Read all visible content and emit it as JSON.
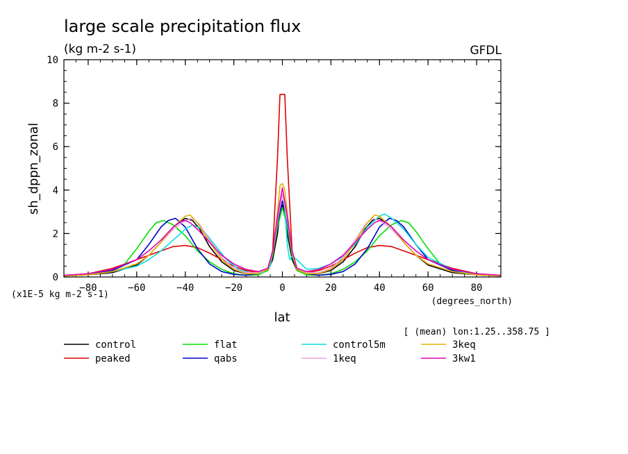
{
  "chart_data": {
    "type": "line",
    "title": "large scale precipitation flux",
    "units_label": "(kg m-2 s-1)",
    "source_label": "GFDL",
    "ylabel": "sh_dppn_zonal",
    "xlabel": "lat",
    "x_unit_label": "(degrees_north)",
    "y_scale_label": "(x1E-5 kg m-2 s-1)",
    "mean_note": "[ (mean) lon:1.25..358.75 ]",
    "xlim": [
      -90,
      90
    ],
    "ylim": [
      0,
      10
    ],
    "x_ticks": [
      -80,
      -60,
      -40,
      -20,
      0,
      20,
      40,
      60,
      80
    ],
    "y_ticks": [
      0,
      2,
      4,
      6,
      8,
      10
    ],
    "legend_placement": "below",
    "grid": false,
    "series": [
      {
        "name": "control",
        "color": "#000000",
        "x": [
          -90,
          -80,
          -70,
          -60,
          -55,
          -50,
          -45,
          -40,
          -37,
          -34,
          -30,
          -25,
          -20,
          -15,
          -10,
          -6,
          -4,
          -2,
          -1,
          0,
          1,
          2,
          4,
          6,
          10,
          15,
          20,
          25,
          30,
          34,
          37,
          40,
          45,
          50,
          55,
          60,
          70,
          80,
          90
        ],
        "y": [
          0.05,
          0.1,
          0.2,
          0.55,
          1.0,
          1.6,
          2.3,
          2.7,
          2.6,
          2.2,
          1.4,
          0.7,
          0.3,
          0.15,
          0.15,
          0.3,
          0.8,
          2.0,
          3.0,
          3.3,
          3.0,
          2.0,
          0.8,
          0.3,
          0.15,
          0.15,
          0.3,
          0.7,
          1.4,
          2.2,
          2.6,
          2.7,
          2.3,
          1.6,
          1.0,
          0.55,
          0.2,
          0.1,
          0.05
        ]
      },
      {
        "name": "peaked",
        "color": "#e00000",
        "x": [
          -90,
          -80,
          -70,
          -60,
          -55,
          -50,
          -45,
          -40,
          -35,
          -30,
          -25,
          -20,
          -15,
          -10,
          -6,
          -4,
          -2,
          -1,
          0,
          1,
          2,
          4,
          6,
          10,
          15,
          20,
          25,
          30,
          35,
          40,
          45,
          50,
          55,
          60,
          70,
          80,
          90
        ],
        "y": [
          0.05,
          0.15,
          0.4,
          0.8,
          1.0,
          1.2,
          1.4,
          1.45,
          1.35,
          1.1,
          0.8,
          0.5,
          0.3,
          0.2,
          0.3,
          1.2,
          5.5,
          8.4,
          8.4,
          8.4,
          5.5,
          1.2,
          0.3,
          0.2,
          0.3,
          0.5,
          0.8,
          1.1,
          1.35,
          1.45,
          1.4,
          1.2,
          1.0,
          0.8,
          0.4,
          0.15,
          0.05
        ]
      },
      {
        "name": "flat",
        "color": "#00dd00",
        "x": [
          -90,
          -80,
          -70,
          -65,
          -60,
          -55,
          -52,
          -49,
          -45,
          -40,
          -35,
          -30,
          -25,
          -20,
          -15,
          -10,
          -6,
          -4,
          -2,
          0,
          2,
          4,
          6,
          10,
          15,
          20,
          25,
          30,
          35,
          40,
          45,
          49,
          52,
          55,
          60,
          65,
          70,
          80,
          90
        ],
        "y": [
          0.05,
          0.1,
          0.3,
          0.6,
          1.3,
          2.1,
          2.5,
          2.6,
          2.4,
          1.9,
          1.2,
          0.7,
          0.35,
          0.15,
          0.08,
          0.1,
          0.3,
          1.0,
          2.3,
          3.2,
          2.3,
          1.0,
          0.3,
          0.1,
          0.08,
          0.15,
          0.35,
          0.7,
          1.2,
          1.9,
          2.4,
          2.6,
          2.5,
          2.1,
          1.3,
          0.6,
          0.3,
          0.1,
          0.05
        ]
      },
      {
        "name": "qabs",
        "color": "#0000cc",
        "x": [
          -90,
          -80,
          -70,
          -60,
          -55,
          -50,
          -47,
          -44,
          -40,
          -35,
          -30,
          -25,
          -20,
          -15,
          -10,
          -6,
          -4,
          -2,
          0,
          2,
          4,
          6,
          10,
          15,
          20,
          25,
          30,
          35,
          40,
          44,
          47,
          50,
          55,
          60,
          70,
          80,
          90
        ],
        "y": [
          0.05,
          0.1,
          0.3,
          0.8,
          1.5,
          2.3,
          2.6,
          2.7,
          2.3,
          1.3,
          0.6,
          0.25,
          0.12,
          0.08,
          0.15,
          0.4,
          1.1,
          2.5,
          3.5,
          2.5,
          1.1,
          0.4,
          0.15,
          0.08,
          0.12,
          0.25,
          0.6,
          1.3,
          2.3,
          2.7,
          2.6,
          2.3,
          1.5,
          0.8,
          0.3,
          0.1,
          0.05
        ]
      },
      {
        "name": "control5m",
        "color": "#00e0e0",
        "x": [
          -90,
          -80,
          -70,
          -60,
          -55,
          -50,
          -45,
          -40,
          -37,
          -33,
          -28,
          -23,
          -18,
          -12,
          -8,
          -5,
          -3,
          -1,
          0,
          1,
          2,
          3,
          4,
          6,
          10,
          15,
          20,
          25,
          30,
          35,
          40,
          42,
          45,
          50,
          55,
          60,
          70,
          80,
          90
        ],
        "y": [
          0.05,
          0.1,
          0.25,
          0.5,
          0.8,
          1.2,
          1.7,
          2.2,
          2.4,
          2.2,
          1.5,
          0.8,
          0.35,
          0.15,
          0.2,
          0.5,
          1.8,
          3.5,
          3.8,
          3.2,
          1.5,
          0.8,
          0.95,
          0.8,
          0.35,
          0.4,
          0.6,
          0.95,
          1.5,
          2.3,
          2.8,
          2.9,
          2.7,
          2.2,
          1.5,
          0.9,
          0.35,
          0.1,
          0.05
        ]
      },
      {
        "name": "1keq",
        "color": "#ee9ee0",
        "x": [
          -90,
          -80,
          -70,
          -60,
          -55,
          -50,
          -45,
          -40,
          -37,
          -34,
          -30,
          -25,
          -20,
          -15,
          -10,
          -6,
          -4,
          -2,
          0,
          2,
          4,
          6,
          10,
          15,
          20,
          25,
          30,
          34,
          37,
          40,
          45,
          50,
          55,
          60,
          70,
          80,
          90
        ],
        "y": [
          0.05,
          0.1,
          0.25,
          0.6,
          1.0,
          1.6,
          2.2,
          2.6,
          2.7,
          2.4,
          1.7,
          0.9,
          0.4,
          0.2,
          0.2,
          0.4,
          1.1,
          2.6,
          3.8,
          2.6,
          1.1,
          0.4,
          0.2,
          0.2,
          0.4,
          0.9,
          1.7,
          2.4,
          2.7,
          2.6,
          2.2,
          1.6,
          1.0,
          0.6,
          0.25,
          0.1,
          0.05
        ]
      },
      {
        "name": "3keq",
        "color": "#e0b000",
        "x": [
          -90,
          -80,
          -70,
          -60,
          -55,
          -50,
          -45,
          -40,
          -38,
          -35,
          -30,
          -25,
          -20,
          -15,
          -10,
          -6,
          -4,
          -2,
          -1,
          0,
          1,
          2,
          4,
          6,
          10,
          15,
          20,
          25,
          30,
          35,
          38,
          40,
          45,
          50,
          55,
          60,
          70,
          80,
          90
        ],
        "y": [
          0.05,
          0.1,
          0.25,
          0.6,
          1.0,
          1.6,
          2.3,
          2.8,
          2.85,
          2.5,
          1.6,
          0.8,
          0.35,
          0.15,
          0.15,
          0.35,
          1.1,
          3.0,
          4.2,
          4.3,
          4.0,
          3.0,
          1.1,
          0.35,
          0.15,
          0.15,
          0.35,
          0.8,
          1.6,
          2.5,
          2.85,
          2.8,
          2.3,
          1.6,
          1.0,
          0.6,
          0.25,
          0.1,
          0.05
        ]
      },
      {
        "name": "3kw1",
        "color": "#e000b0",
        "x": [
          -90,
          -80,
          -70,
          -60,
          -55,
          -50,
          -45,
          -42,
          -40,
          -38,
          -35,
          -30,
          -25,
          -20,
          -15,
          -10,
          -6,
          -4,
          -2,
          0,
          2,
          4,
          6,
          10,
          15,
          20,
          25,
          30,
          35,
          38,
          40,
          42,
          45,
          50,
          55,
          60,
          70,
          80,
          90
        ],
        "y": [
          0.08,
          0.15,
          0.35,
          0.8,
          1.2,
          1.7,
          2.3,
          2.55,
          2.6,
          2.5,
          2.2,
          1.6,
          1.0,
          0.6,
          0.35,
          0.25,
          0.4,
          1.2,
          2.8,
          4.1,
          2.8,
          1.2,
          0.4,
          0.25,
          0.35,
          0.6,
          1.0,
          1.6,
          2.2,
          2.5,
          2.6,
          2.55,
          2.3,
          1.7,
          1.2,
          0.8,
          0.35,
          0.15,
          0.08
        ]
      }
    ]
  }
}
